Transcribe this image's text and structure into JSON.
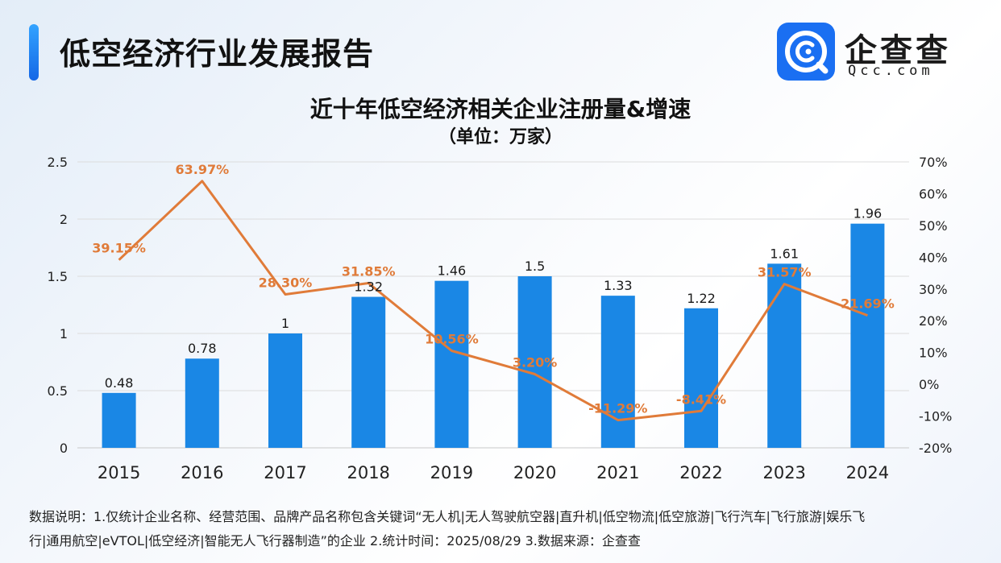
{
  "header": {
    "title": "低空经济行业发展报告"
  },
  "logo": {
    "cn": "企查查",
    "en": "Qcc.com"
  },
  "chart_data": {
    "type": "bar",
    "title": "近十年低空经济相关企业注册量&增速",
    "subtitle": "（单位：万家）",
    "categories": [
      "2015",
      "2016",
      "2017",
      "2018",
      "2019",
      "2020",
      "2021",
      "2022",
      "2023",
      "2024"
    ],
    "series": [
      {
        "kind": "bar",
        "axis": "left",
        "values": [
          0.48,
          0.78,
          1,
          1.32,
          1.46,
          1.5,
          1.33,
          1.22,
          1.61,
          1.96
        ],
        "labels": [
          "0.48",
          "0.78",
          "1",
          "1.32",
          "1.46",
          "1.5",
          "1.33",
          "1.22",
          "1.61",
          "1.96"
        ]
      },
      {
        "kind": "line",
        "axis": "right",
        "values": [
          39.15,
          63.97,
          28.3,
          31.85,
          10.56,
          3.2,
          -11.29,
          -8.41,
          31.57,
          21.69
        ],
        "labels": [
          "39.15%",
          "63.97%",
          "28.30%",
          "31.85%",
          "10.56%",
          "3.20%",
          "-11.29%",
          "-8.41%",
          "31.57%",
          "21.69%"
        ]
      }
    ],
    "y_left": {
      "ylim": [
        0,
        2.5
      ],
      "ticks": [
        0,
        0.5,
        1,
        1.5,
        2,
        2.5
      ],
      "tick_labels": [
        "0",
        "0.5",
        "1",
        "1.5",
        "2",
        "2.5"
      ]
    },
    "y_right": {
      "ylim": [
        -20,
        70
      ],
      "ticks": [
        -20,
        -10,
        0,
        10,
        20,
        30,
        40,
        50,
        60,
        70
      ],
      "tick_labels": [
        "-20%",
        "-10%",
        "0%",
        "10%",
        "20%",
        "30%",
        "40%",
        "50%",
        "60%",
        "70%"
      ]
    },
    "grid": true,
    "colors": {
      "bar": "#1a87e5",
      "line": "#e07b39",
      "bar_label": "#1a1a1a",
      "line_label": "#e07b39"
    }
  },
  "footnote": {
    "line1": "数据说明：1.仅统计企业名称、经营范围、品牌产品名称包含关键词“无人机|无人驾驶航空器|直升机|低空物流|低空旅游|飞行汽车|飞行旅游|娱乐飞",
    "line2": "行|通用航空|eVTOL|低空经济|智能无人飞行器制造”的企业   2.统计时间：2025/08/29    3.数据来源：企查查"
  }
}
